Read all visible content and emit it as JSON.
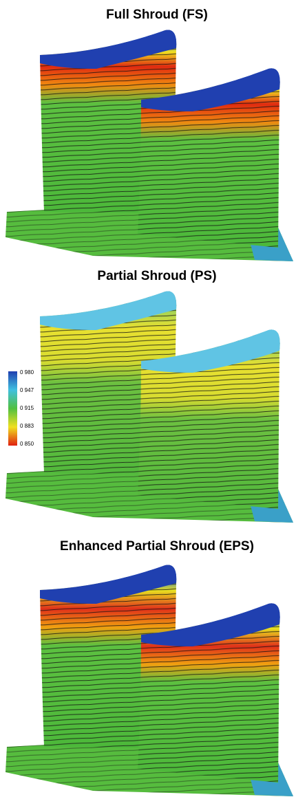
{
  "panels": [
    {
      "title": "Full Shroud (FS)"
    },
    {
      "title": "Partial Shroud (PS)"
    },
    {
      "title": "Enhanced Partial Shroud (EPS)"
    }
  ],
  "colorbar": {
    "labels": [
      "0 980",
      "0 947",
      "0 915",
      "0 883",
      "0 850"
    ]
  }
}
